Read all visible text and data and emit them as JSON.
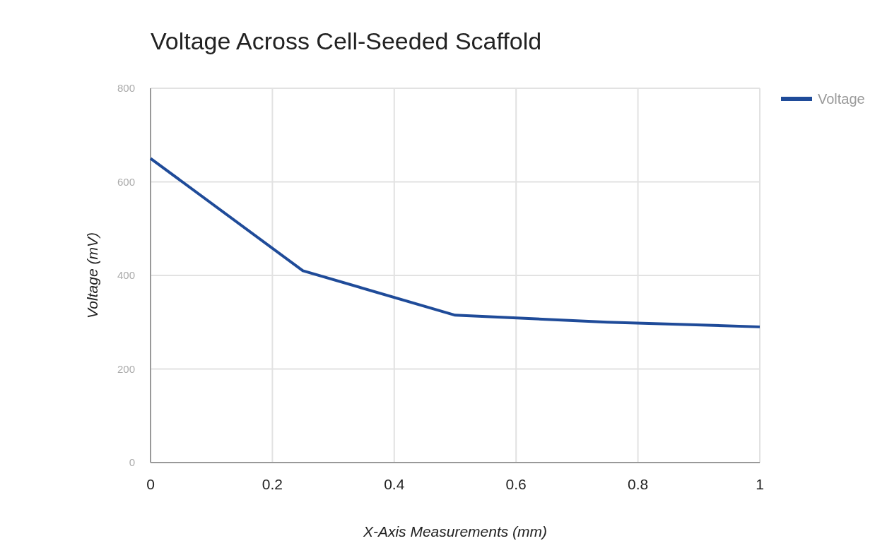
{
  "chart_data": {
    "type": "line",
    "title": "Voltage Across Cell-Seeded Scaffold",
    "xlabel": "X-Axis Measurements (mm)",
    "ylabel": "Voltage (mV)",
    "x": [
      0,
      0.25,
      0.5,
      0.75,
      1
    ],
    "series": [
      {
        "name": "Voltage",
        "color": "#1f4b99",
        "values": [
          650,
          410,
          315,
          300,
          290
        ]
      }
    ],
    "xlim": [
      0,
      1
    ],
    "xticks": [
      0,
      0.2,
      0.4,
      0.6,
      0.8,
      1
    ],
    "ylim": [
      0,
      800
    ],
    "yticks": [
      0,
      200,
      400,
      600,
      800
    ],
    "grid": true,
    "legend": "top right",
    "line_style": "solid",
    "marker": "none"
  }
}
